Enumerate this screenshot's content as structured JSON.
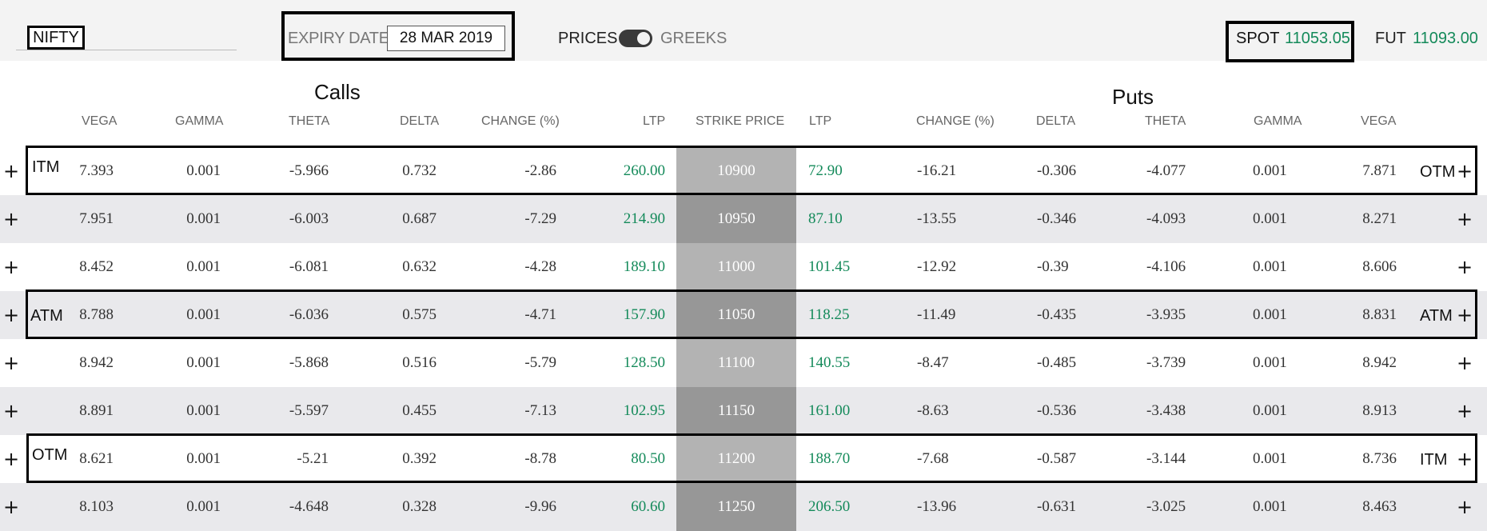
{
  "header": {
    "symbol": "NIFTY",
    "expiry_label": "EXPIRY DATE",
    "expiry_value": "28 MAR 2019",
    "toggle_left_label": "PRICES",
    "toggle_right_label": "GREEKS",
    "spot_label": "SPOT",
    "spot_value": "11053.05",
    "fut_label": "FUT",
    "fut_value": "11093.00"
  },
  "sections": {
    "calls": "Calls",
    "puts": "Puts"
  },
  "columns": {
    "call_vega": "VEGA",
    "call_gamma": "GAMMA",
    "call_theta": "THETA",
    "call_delta": "DELTA",
    "call_change": "CHANGE (%)",
    "call_ltp": "LTP",
    "strike": "STRIKE PRICE",
    "put_ltp": "LTP",
    "put_change": "CHANGE (%)",
    "put_delta": "DELTA",
    "put_theta": "THETA",
    "put_gamma": "GAMMA",
    "put_vega": "VEGA"
  },
  "add_symbol": "+",
  "rows": [
    {
      "call_label": "ITM",
      "put_label": "OTM",
      "call_vega": "7.393",
      "call_gamma": "0.001",
      "call_theta": "-5.966",
      "call_delta": "0.732",
      "call_change": "-2.86",
      "call_ltp": "260.00",
      "strike": "10900",
      "put_ltp": "72.90",
      "put_change": "-16.21",
      "put_delta": "-0.306",
      "put_theta": "-4.077",
      "put_gamma": "0.001",
      "put_vega": "7.871"
    },
    {
      "call_label": "",
      "put_label": "",
      "call_vega": "7.951",
      "call_gamma": "0.001",
      "call_theta": "-6.003",
      "call_delta": "0.687",
      "call_change": "-7.29",
      "call_ltp": "214.90",
      "strike": "10950",
      "put_ltp": "87.10",
      "put_change": "-13.55",
      "put_delta": "-0.346",
      "put_theta": "-4.093",
      "put_gamma": "0.001",
      "put_vega": "8.271"
    },
    {
      "call_label": "",
      "put_label": "",
      "call_vega": "8.452",
      "call_gamma": "0.001",
      "call_theta": "-6.081",
      "call_delta": "0.632",
      "call_change": "-4.28",
      "call_ltp": "189.10",
      "strike": "11000",
      "put_ltp": "101.45",
      "put_change": "-12.92",
      "put_delta": "-0.39",
      "put_theta": "-4.106",
      "put_gamma": "0.001",
      "put_vega": "8.606"
    },
    {
      "call_label": "ATM",
      "put_label": "ATM",
      "call_vega": "8.788",
      "call_gamma": "0.001",
      "call_theta": "-6.036",
      "call_delta": "0.575",
      "call_change": "-4.71",
      "call_ltp": "157.90",
      "strike": "11050",
      "put_ltp": "118.25",
      "put_change": "-11.49",
      "put_delta": "-0.435",
      "put_theta": "-3.935",
      "put_gamma": "0.001",
      "put_vega": "8.831"
    },
    {
      "call_label": "",
      "put_label": "",
      "call_vega": "8.942",
      "call_gamma": "0.001",
      "call_theta": "-5.868",
      "call_delta": "0.516",
      "call_change": "-5.79",
      "call_ltp": "128.50",
      "strike": "11100",
      "put_ltp": "140.55",
      "put_change": "-8.47",
      "put_delta": "-0.485",
      "put_theta": "-3.739",
      "put_gamma": "0.001",
      "put_vega": "8.942"
    },
    {
      "call_label": "",
      "put_label": "",
      "call_vega": "8.891",
      "call_gamma": "0.001",
      "call_theta": "-5.597",
      "call_delta": "0.455",
      "call_change": "-7.13",
      "call_ltp": "102.95",
      "strike": "11150",
      "put_ltp": "161.00",
      "put_change": "-8.63",
      "put_delta": "-0.536",
      "put_theta": "-3.438",
      "put_gamma": "0.001",
      "put_vega": "8.913"
    },
    {
      "call_label": "OTM",
      "put_label": "ITM",
      "call_vega": "8.621",
      "call_gamma": "0.001",
      "call_theta": "-5.21",
      "call_delta": "0.392",
      "call_change": "-8.78",
      "call_ltp": "80.50",
      "strike": "11200",
      "put_ltp": "188.70",
      "put_change": "-7.68",
      "put_delta": "-0.587",
      "put_theta": "-3.144",
      "put_gamma": "0.001",
      "put_vega": "8.736"
    },
    {
      "call_label": "",
      "put_label": "",
      "call_vega": "8.103",
      "call_gamma": "0.001",
      "call_theta": "-4.648",
      "call_delta": "0.328",
      "call_change": "-9.96",
      "call_ltp": "60.60",
      "strike": "11250",
      "put_ltp": "206.50",
      "put_change": "-13.96",
      "put_delta": "-0.631",
      "put_theta": "-3.025",
      "put_gamma": "0.001",
      "put_vega": "8.463"
    }
  ]
}
